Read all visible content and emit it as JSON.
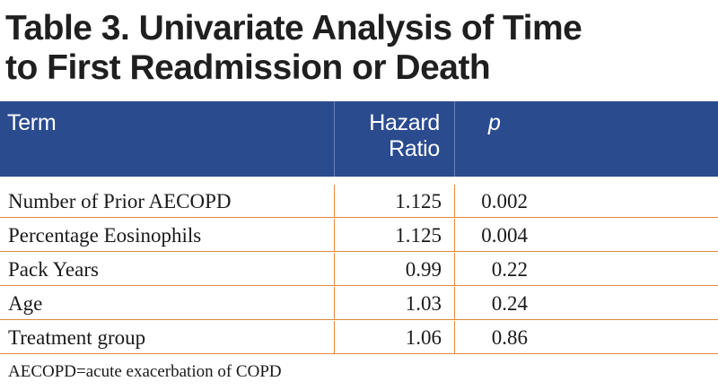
{
  "title_line1": "Table 3. Univariate Analysis of Time",
  "title_line2": "to First Readmission or Death",
  "columns": {
    "term": "Term",
    "hazard_ratio_line1": "Hazard",
    "hazard_ratio_line2": "Ratio",
    "p": "p"
  },
  "rows": [
    {
      "term": "Number of Prior AECOPD",
      "hazard_ratio": "1.125",
      "p": "0.002"
    },
    {
      "term": "Percentage Eosinophils",
      "hazard_ratio": "1.125",
      "p": "0.004"
    },
    {
      "term": "Pack Years",
      "hazard_ratio": "0.99",
      "p": "0.22"
    },
    {
      "term": "Age",
      "hazard_ratio": "1.03",
      "p": "0.24"
    },
    {
      "term": "Treatment group",
      "hazard_ratio": "1.06",
      "p": "0.86"
    }
  ],
  "footnote": "AECOPD=acute exacerbation of COPD",
  "colors": {
    "header_background": "#2b4b8f",
    "row_divider": "#e6873a"
  }
}
